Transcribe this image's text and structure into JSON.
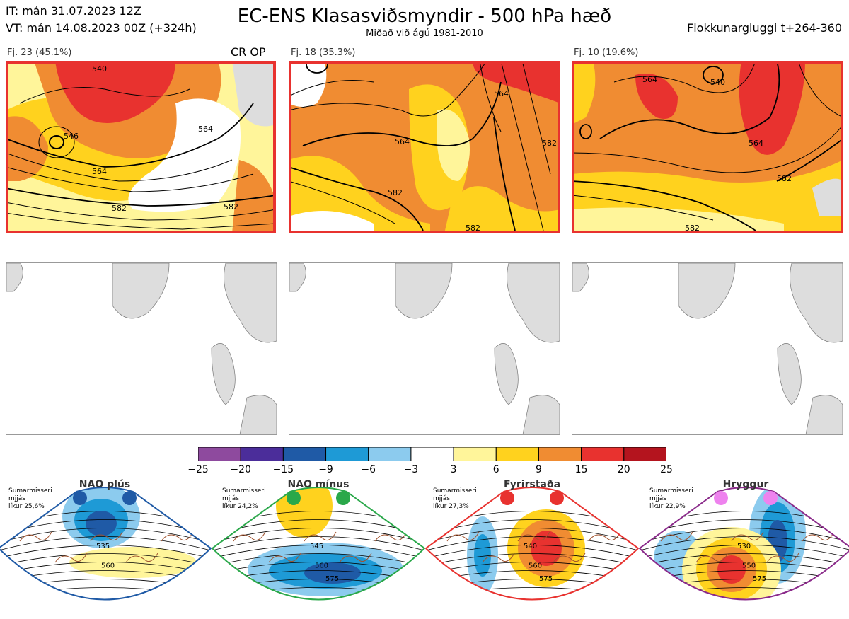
{
  "header": {
    "it_line": "IT: mán 31.07.2023 12Z",
    "vt_line": "VT: mán 14.08.2023 00Z  (+324h)",
    "title": "EC-ENS Klasasviðsmyndir - 500 hPa hæð",
    "subtitle": "Miðað við ágú 1981-2010",
    "window": "Flokkunarglugg​i t+264-360"
  },
  "panels": [
    {
      "label": "Fj. 23 (45.1%)",
      "tag": "CR OP",
      "contours": [
        "546",
        "564",
        "582",
        "540",
        "564",
        "582"
      ]
    },
    {
      "label": "Fj. 18 (35.3%)",
      "contours": [
        "564",
        "564",
        "582",
        "582",
        "582"
      ]
    },
    {
      "label": "Fj. 10 (19.6%)",
      "contours": [
        "540",
        "564",
        "564",
        "582",
        "582"
      ]
    }
  ],
  "colorbar": {
    "ticks": [
      "−25",
      "−20",
      "−15",
      "−9",
      "−6",
      "−3",
      "3",
      "6",
      "9",
      "15",
      "20",
      "25"
    ],
    "colors": [
      "#8e4a9e",
      "#4b2d9a",
      "#1f5aa6",
      "#1e9ad6",
      "#8ccbee",
      "#ffffff",
      "#fff59a",
      "#ffd21e",
      "#f08c32",
      "#e8322f",
      "#b4141e"
    ]
  },
  "regimes": [
    {
      "name": "NAO plús",
      "season": "Sumarmisseri",
      "mean": "mjjás",
      "prob": "líkur 25,6%",
      "dot_color": "#1f5aa6",
      "frame_color": "#1f5aa6",
      "contours": [
        "535",
        "560"
      ]
    },
    {
      "name": "NAO mínus",
      "season": "Sumarmisseri",
      "mean": "mjjás",
      "prob": "líkur 24,2%",
      "dot_color": "#2aa84a",
      "frame_color": "#2aa84a",
      "contours": [
        "545",
        "560",
        "575"
      ]
    },
    {
      "name": "Fyrirstaða",
      "season": "Sumarmisseri",
      "mean": "mjjás",
      "prob": "líkur 27,3%",
      "dot_color": "#e8322f",
      "frame_color": "#e8322f",
      "contours": [
        "540",
        "560",
        "575"
      ]
    },
    {
      "name": "Hryggur",
      "season": "Sumarmisseri",
      "mean": "mjjás",
      "prob": "líkur 22,9%",
      "dot_color": "#ee82ee",
      "frame_color": "#8a2a8a",
      "contours": [
        "530",
        "550",
        "575"
      ]
    }
  ]
}
